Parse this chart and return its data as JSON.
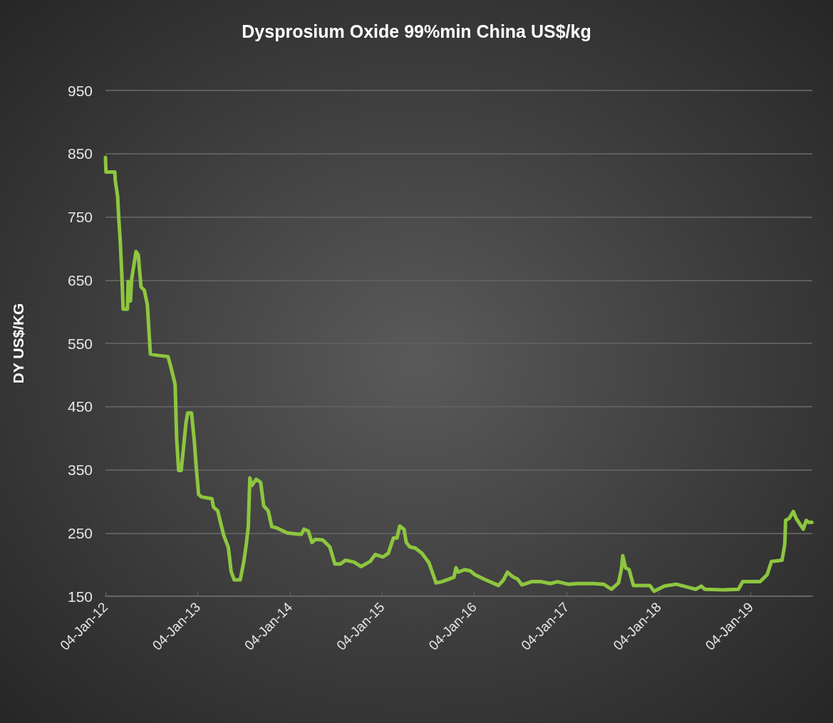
{
  "chart_data": {
    "type": "line",
    "title": "Dysprosium Oxide 99%min China US$/kg",
    "ylabel": "DY US$/KG",
    "xlim": [
      "2012-01-04",
      "2019-09-05"
    ],
    "xticks": [
      {
        "value": "2012-01-04",
        "label": "04-Jan-12"
      },
      {
        "value": "2013-01-04",
        "label": "04-Jan-13"
      },
      {
        "value": "2014-01-04",
        "label": "04-Jan-14"
      },
      {
        "value": "2015-01-04",
        "label": "04-Jan-15"
      },
      {
        "value": "2016-01-04",
        "label": "04-Jan-16"
      },
      {
        "value": "2017-01-04",
        "label": "04-Jan-17"
      },
      {
        "value": "2018-01-04",
        "label": "04-Jan-18"
      },
      {
        "value": "2019-01-04",
        "label": "04-Jan-19"
      }
    ],
    "ylim": [
      150,
      950
    ],
    "yticks": [
      150,
      250,
      350,
      450,
      550,
      650,
      750,
      850,
      950
    ],
    "grid": "y",
    "marker": "none",
    "line_style": "solid",
    "x": [
      "2012-01-04",
      "2012-01-06",
      "2012-02-10",
      "2012-02-12",
      "2012-02-21",
      "2012-02-26",
      "2012-03-03",
      "2012-03-10",
      "2012-03-14",
      "2012-03-31",
      "2012-04-03",
      "2012-04-12",
      "2012-04-17",
      "2012-05-04",
      "2012-05-13",
      "2012-05-24",
      "2012-06-06",
      "2012-06-18",
      "2012-06-30",
      "2012-07-28",
      "2012-09-08",
      "2012-09-19",
      "2012-10-06",
      "2012-10-12",
      "2012-10-20",
      "2012-10-30",
      "2012-11-05",
      "2012-11-18",
      "2012-11-25",
      "2012-12-10",
      "2012-12-21",
      "2012-12-27",
      "2013-01-07",
      "2013-01-19",
      "2013-03-01",
      "2013-03-07",
      "2013-03-24",
      "2013-04-05",
      "2013-04-17",
      "2013-05-05",
      "2013-05-16",
      "2013-05-28",
      "2013-06-21",
      "2013-07-05",
      "2013-07-15",
      "2013-07-23",
      "2013-07-29",
      "2013-08-06",
      "2013-08-23",
      "2013-09-10",
      "2013-09-22",
      "2013-10-10",
      "2013-10-24",
      "2013-11-13",
      "2013-12-25",
      "2014-02-10",
      "2014-02-18",
      "2014-03-01",
      "2014-03-18",
      "2014-04-01",
      "2014-04-15",
      "2014-05-14",
      "2014-06-11",
      "2014-07-01",
      "2014-07-23",
      "2014-08-12",
      "2014-09-15",
      "2014-10-13",
      "2014-11-18",
      "2014-12-08",
      "2015-01-07",
      "2015-01-29",
      "2015-02-18",
      "2015-03-04",
      "2015-03-15",
      "2015-04-01",
      "2015-04-10",
      "2015-04-24",
      "2015-05-16",
      "2015-06-11",
      "2015-07-09",
      "2015-08-06",
      "2015-08-29",
      "2015-10-16",
      "2015-10-24",
      "2015-11-02",
      "2015-11-27",
      "2015-12-20",
      "2016-01-07",
      "2016-02-12",
      "2016-04-09",
      "2016-04-28",
      "2016-05-15",
      "2016-06-04",
      "2016-06-24",
      "2016-07-11",
      "2016-08-19",
      "2016-09-25",
      "2016-11-01",
      "2016-11-29",
      "2017-01-10",
      "2017-02-15",
      "2017-04-21",
      "2017-05-31",
      "2017-07-01",
      "2017-07-29",
      "2017-08-09",
      "2017-08-15",
      "2017-08-26",
      "2017-09-09",
      "2017-09-26",
      "2017-11-30",
      "2017-12-17",
      "2018-01-27",
      "2018-03-15",
      "2018-05-02",
      "2018-05-31",
      "2018-06-22",
      "2018-07-06",
      "2018-09-20",
      "2018-11-16",
      "2018-12-03",
      "2019-02-10",
      "2019-03-10",
      "2019-03-27",
      "2019-05-08",
      "2019-05-19",
      "2019-05-22",
      "2019-06-05",
      "2019-06-22",
      "2019-07-03",
      "2019-07-31",
      "2019-08-12",
      "2019-08-20",
      "2019-09-03"
    ],
    "series": [
      {
        "color": "#8dc63f",
        "values": [
          844,
          821,
          821,
          807,
          783,
          746,
          709,
          648,
          604,
          604,
          648,
          617,
          652,
          695,
          690,
          639,
          634,
          611,
          533,
          531,
          529,
          513,
          485,
          400,
          349,
          349,
          372,
          424,
          440,
          440,
          396,
          363,
          311,
          307,
          304,
          291,
          285,
          265,
          246,
          227,
          189,
          176,
          176,
          204,
          232,
          260,
          337,
          325,
          335,
          330,
          293,
          285,
          260,
          258,
          250,
          248,
          248,
          256,
          253,
          235,
          240,
          239,
          228,
          201,
          201,
          207,
          204,
          197,
          205,
          216,
          212,
          218,
          242,
          242,
          261,
          256,
          235,
          228,
          226,
          218,
          203,
          171,
          173,
          180,
          195,
          188,
          192,
          190,
          184,
          177,
          167,
          175,
          188,
          181,
          177,
          168,
          173,
          173,
          170,
          173,
          169,
          170,
          170,
          169,
          161,
          171,
          192,
          214,
          195,
          192,
          167,
          167,
          158,
          166,
          169,
          164,
          161,
          166,
          161,
          160,
          161,
          173,
          173,
          184,
          205,
          207,
          233,
          270,
          273,
          284,
          273,
          256,
          270,
          267,
          267
        ]
      }
    ]
  }
}
